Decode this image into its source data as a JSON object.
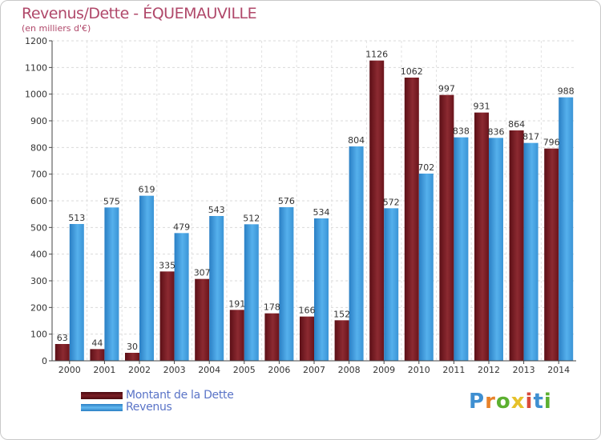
{
  "header": {
    "title": "Revenus/Dette - ÉQUEMAUVILLE",
    "subtitle": "(en milliers d'€)"
  },
  "logo": {
    "text": "Proxiti",
    "letters": [
      "P",
      "r",
      "o",
      "x",
      "i",
      "t",
      "i"
    ],
    "colors": [
      "#3f8fd1",
      "#e8822a",
      "#5cb030",
      "#e6c12a",
      "#d94a3a",
      "#3f8fd1",
      "#5cb030"
    ]
  },
  "chart_data": {
    "type": "bar",
    "title": "Revenus/Dette - ÉQUEMAUVILLE",
    "subtitle": "(en milliers d'€)",
    "categories": [
      "2000",
      "2001",
      "2002",
      "2003",
      "2004",
      "2005",
      "2006",
      "2007",
      "2008",
      "2009",
      "2010",
      "2011",
      "2012",
      "2013",
      "2014"
    ],
    "series": [
      {
        "name": "Montant de la Dette",
        "color": "#7a1f26",
        "values": [
          63,
          44,
          30,
          335,
          307,
          191,
          178,
          166,
          152,
          1126,
          1062,
          997,
          931,
          864,
          796
        ],
        "labels": [
          "63",
          "44",
          "30",
          "335",
          "307",
          "191",
          "178",
          "166",
          "152",
          "1126",
          "1062",
          "997",
          "931",
          "864",
          "796"
        ]
      },
      {
        "name": "Revenus",
        "color": "#3e9de0",
        "values": [
          513,
          575,
          619,
          479,
          543,
          512,
          576,
          534,
          804,
          572,
          702,
          838,
          836,
          817,
          988
        ],
        "labels": [
          "513",
          "575",
          "619",
          "479",
          "543",
          "512",
          "576",
          "534",
          "804",
          "572",
          "702",
          "838",
          "836",
          "817",
          "988"
        ]
      }
    ],
    "yticks": [
      "0",
      "100",
      "200",
      "300",
      "400",
      "500",
      "600",
      "700",
      "800",
      "900",
      "1000",
      "1100",
      "1200"
    ],
    "ylim": [
      0,
      1200
    ],
    "grid": true,
    "legend_position": "bottom-left"
  }
}
